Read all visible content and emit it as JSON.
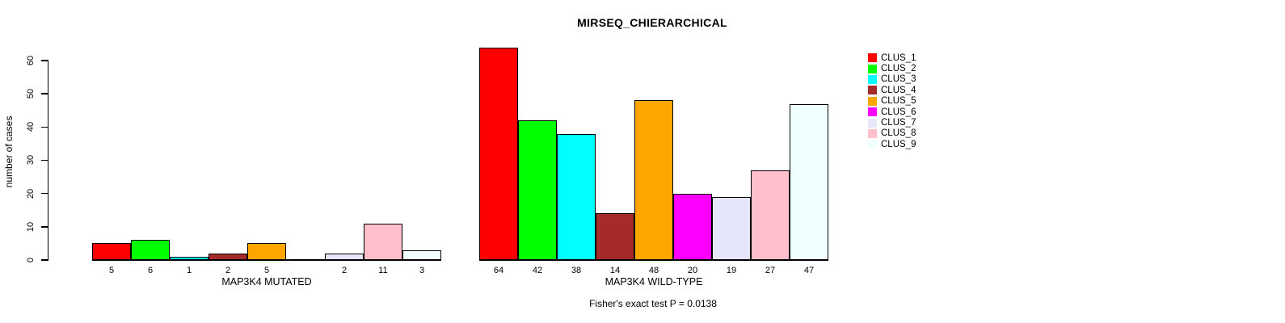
{
  "chart_data": {
    "type": "bar",
    "title": "MIRSEQ_CHIERARCHICAL",
    "ylabel": "number of cases",
    "ylim": [
      0,
      60
    ],
    "y_ticks": [
      0,
      10,
      20,
      30,
      40,
      50,
      60
    ],
    "grid": false,
    "legend_position": "top-right-inside",
    "categories": [
      "CLUS_1",
      "CLUS_2",
      "CLUS_3",
      "CLUS_4",
      "CLUS_5",
      "CLUS_6",
      "CLUS_7",
      "CLUS_8",
      "CLUS_9"
    ],
    "colors": [
      "#FF0000",
      "#00FF00",
      "#00FFFF",
      "#A52A2A",
      "#FFA500",
      "#FF00FF",
      "#E6E6FA",
      "#FFC0CB",
      "#F0FFFF"
    ],
    "bar_border_color": "#000000",
    "groups": [
      {
        "label": "MAP3K4 MUTATED",
        "values": [
          5,
          6,
          1,
          2,
          5,
          0,
          2,
          11,
          3
        ],
        "bar_labels": [
          "5",
          "6",
          "1",
          "2",
          "5",
          "",
          "2",
          "11",
          "3"
        ]
      },
      {
        "label": "MAP3K4 WILD-TYPE",
        "values": [
          64,
          42,
          38,
          14,
          48,
          20,
          19,
          27,
          47
        ],
        "bar_labels": [
          "64",
          "42",
          "38",
          "14",
          "48",
          "20",
          "19",
          "27",
          "47"
        ]
      }
    ],
    "annotation": "Fisher's exact test P = 0.0138"
  }
}
